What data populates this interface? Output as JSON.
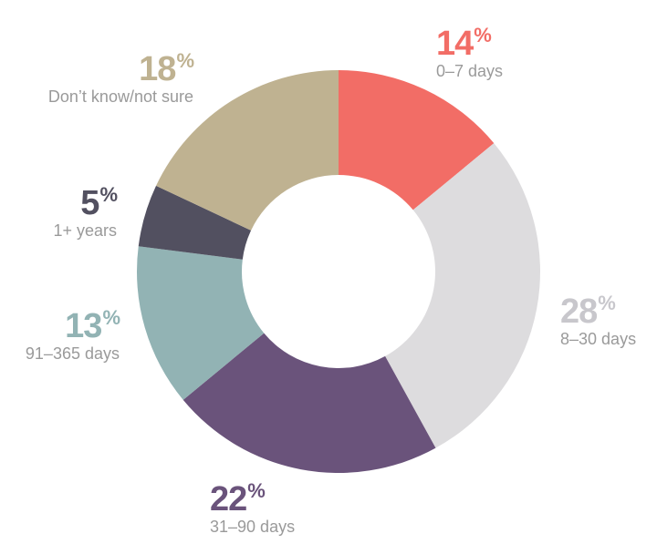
{
  "chart_data": {
    "type": "pie",
    "categories": [
      "0–7 days",
      "8–30 days",
      "31–90 days",
      "91–365 days",
      "1+ years",
      "Don’t know/not sure"
    ],
    "values": [
      14,
      28,
      22,
      13,
      5,
      18
    ],
    "labels": [
      "14",
      "28",
      "22",
      "13",
      "5",
      "18"
    ],
    "unit": "%",
    "colors": [
      "#f26d66",
      "#dddcde",
      "#6a537b",
      "#92b3b4",
      "#525060",
      "#bfb291"
    ],
    "label_colors": [
      "#f26d66",
      "#c8c7cc",
      "#6a537b",
      "#92b3b4",
      "#525060",
      "#bfb291"
    ],
    "donut": true
  }
}
